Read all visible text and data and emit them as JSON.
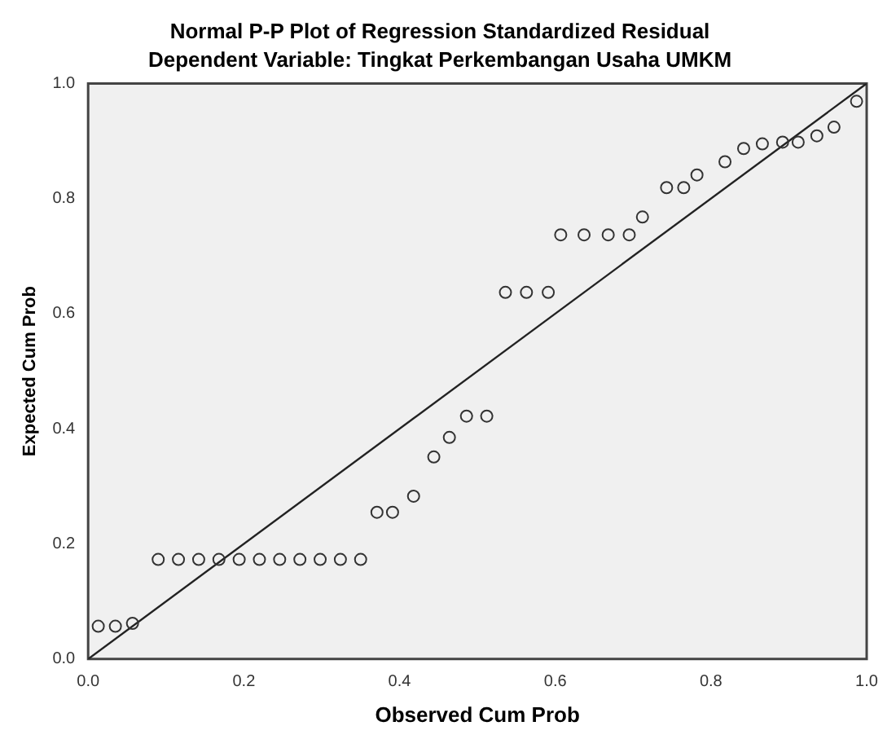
{
  "chart_data": {
    "type": "scatter",
    "title": "Normal P-P Plot of Regression Standardized Residual",
    "subtitle": "Dependent Variable: Tingkat Perkembangan Usaha UMKM",
    "xlabel": "Observed Cum Prob",
    "ylabel": "Expected Cum Prob",
    "xlim": [
      0,
      1
    ],
    "ylim": [
      0,
      1
    ],
    "xticks": [
      {
        "value": 0,
        "label": "0.0"
      },
      {
        "value": 0.2,
        "label": "0.2"
      },
      {
        "value": 0.4,
        "label": "0.4"
      },
      {
        "value": 0.6,
        "label": "0.6"
      },
      {
        "value": 0.8,
        "label": "0.8"
      },
      {
        "value": 1,
        "label": "1.0"
      }
    ],
    "yticks": [
      {
        "value": 0,
        "label": "0.0"
      },
      {
        "value": 0.2,
        "label": "0.2"
      },
      {
        "value": 0.4,
        "label": "0.4"
      },
      {
        "value": 0.6,
        "label": "0.6"
      },
      {
        "value": 0.8,
        "label": "0.8"
      },
      {
        "value": 1,
        "label": "1.0"
      }
    ],
    "grid": false,
    "legend": false,
    "series": [
      {
        "marker": "circle",
        "color": "#333333",
        "x": [
          0.013,
          0.035,
          0.057,
          0.09,
          0.116,
          0.142,
          0.168,
          0.194,
          0.22,
          0.246,
          0.272,
          0.298,
          0.324,
          0.35,
          0.371,
          0.391,
          0.418,
          0.444,
          0.464,
          0.486,
          0.512,
          0.536,
          0.563,
          0.591,
          0.607,
          0.637,
          0.668,
          0.695,
          0.712,
          0.743,
          0.765,
          0.782,
          0.818,
          0.842,
          0.866,
          0.892,
          0.912,
          0.936,
          0.958,
          0.987
        ],
        "values": [
          0.057,
          0.057,
          0.062,
          0.173,
          0.173,
          0.173,
          0.173,
          0.173,
          0.173,
          0.173,
          0.173,
          0.173,
          0.173,
          0.173,
          0.255,
          0.255,
          0.283,
          0.351,
          0.385,
          0.422,
          0.422,
          0.637,
          0.637,
          0.637,
          0.737,
          0.737,
          0.737,
          0.737,
          0.768,
          0.819,
          0.819,
          0.841,
          0.864,
          0.887,
          0.895,
          0.898,
          0.898,
          0.909,
          0.924,
          0.969
        ]
      },
      {
        "type": "line",
        "marker": "none",
        "color": "#222222",
        "x": [
          0,
          1
        ],
        "values": [
          0,
          1
        ]
      }
    ]
  }
}
